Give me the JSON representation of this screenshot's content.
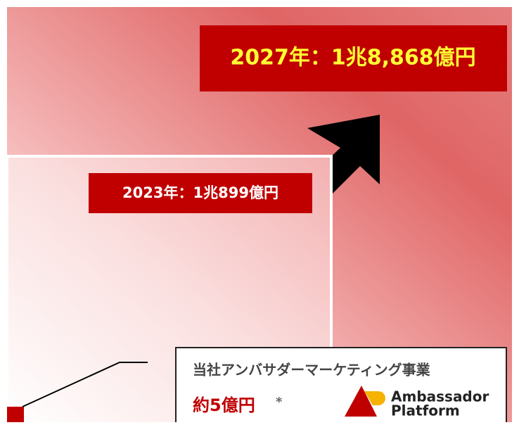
{
  "labels": {
    "future": "2027年：1兆8,868億円",
    "current": "2023年：1兆899億円"
  },
  "company": {
    "business": "当社アンバサダーマーケティング事業",
    "amount": "約5億円",
    "note_mark": "*",
    "logo_line1": "Ambassador",
    "logo_line2": "Platform"
  }
}
